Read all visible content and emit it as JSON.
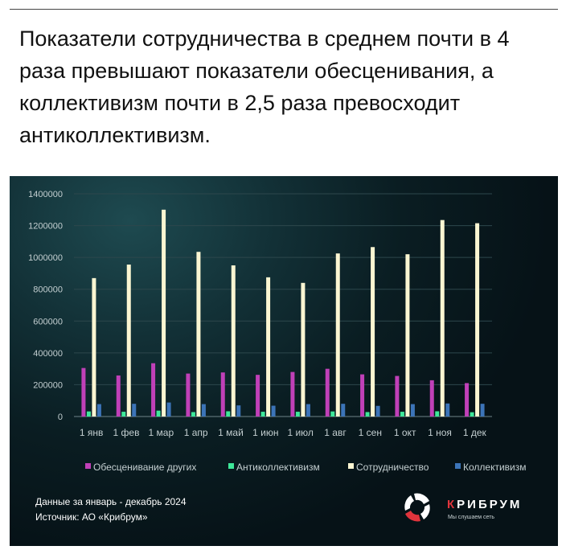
{
  "headline": "Показатели сотрудничества в среднем почти в 4 раза превышают показатели обесценивания, а коллективизм почти в 2,5 раза превосходит антиколлективизм.",
  "footer": {
    "period": "Данные за январь - декабрь 2024",
    "source": "Источник: АО «Крибрум»"
  },
  "logo": {
    "word_first": "К",
    "word_rest": "РИБРУМ",
    "tagline": "Мы слушаем сеть"
  },
  "chart_data": {
    "type": "bar",
    "title": "",
    "xlabel": "",
    "ylabel": "",
    "ylim": [
      0,
      1400000
    ],
    "yticks": [
      0,
      200000,
      400000,
      600000,
      800000,
      1000000,
      1200000,
      1400000
    ],
    "ytick_labels": [
      "0",
      "200000",
      "400000",
      "600000",
      "800000",
      "1000000",
      "1200000",
      "1400000"
    ],
    "grid": true,
    "legend_position": "bottom",
    "categories": [
      "1 янв",
      "1 фев",
      "1 мар",
      "1 апр",
      "1 май",
      "1 июн",
      "1 июл",
      "1 авг",
      "1 сен",
      "1 окт",
      "1 ноя",
      "1 дек"
    ],
    "series": [
      {
        "name": "Обесценивание других",
        "color": "#c040b8",
        "values": [
          305000,
          258000,
          335000,
          270000,
          277000,
          262000,
          280000,
          300000,
          265000,
          255000,
          228000,
          210000
        ]
      },
      {
        "name": "Антиколлективизм",
        "color": "#3ee89a",
        "values": [
          32000,
          30000,
          37000,
          28000,
          33000,
          30000,
          30000,
          32000,
          28000,
          30000,
          33000,
          27000
        ]
      },
      {
        "name": "Сотрудничество",
        "color": "#fbf6d2",
        "values": [
          870000,
          955000,
          1300000,
          1035000,
          950000,
          875000,
          840000,
          1025000,
          1065000,
          1020000,
          1235000,
          1215000
        ]
      },
      {
        "name": "Коллективизм",
        "color": "#3c74b8",
        "values": [
          78000,
          80000,
          88000,
          78000,
          70000,
          68000,
          78000,
          80000,
          67000,
          78000,
          82000,
          80000
        ]
      }
    ]
  }
}
